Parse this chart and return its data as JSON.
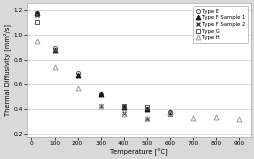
{
  "title": "",
  "xlabel": "Temperature [°C]",
  "ylabel": "Thermal Diffusivity [mm²/s]",
  "xlim": [
    -20,
    950
  ],
  "ylim": [
    0.18,
    1.25
  ],
  "xticks": [
    0,
    100,
    200,
    300,
    400,
    500,
    600,
    700,
    800,
    900
  ],
  "yticks": [
    0.2,
    0.4,
    0.6,
    0.8,
    1.0,
    1.2
  ],
  "series": {
    "Type E": {
      "x": [
        25,
        100,
        200,
        300,
        400,
        500,
        600
      ],
      "y": [
        1.17,
        0.89,
        0.69,
        0.52,
        0.42,
        0.4,
        0.38
      ]
    },
    "Type F Sample 1": {
      "x": [
        25,
        100,
        200,
        300,
        400,
        500,
        600
      ],
      "y": [
        1.17,
        0.88,
        0.68,
        0.52,
        0.42,
        0.4,
        0.38
      ]
    },
    "Type F Sample 2": {
      "x": [
        25,
        100,
        300,
        400,
        500
      ],
      "y": [
        1.16,
        0.88,
        0.43,
        0.37,
        0.32
      ]
    },
    "Type G": {
      "x": [
        25,
        400,
        500,
        600
      ],
      "y": [
        1.1,
        0.43,
        0.42,
        0.36
      ]
    },
    "Type H": {
      "x": [
        25,
        100,
        200,
        300,
        400,
        500,
        600,
        700,
        800,
        900
      ],
      "y": [
        0.95,
        0.74,
        0.57,
        0.43,
        0.36,
        0.33,
        0.37,
        0.33,
        0.34,
        0.32
      ]
    }
  },
  "marker_styles": {
    "Type E": {
      "marker": "o",
      "color": "#555555",
      "ms": 3.0,
      "mfc": "none",
      "mew": 0.7
    },
    "Type F Sample 1": {
      "marker": "^",
      "color": "#111111",
      "ms": 3.5,
      "mfc": "#111111",
      "mew": 0.7
    },
    "Type F Sample 2": {
      "marker": "x",
      "color": "#444444",
      "ms": 3.5,
      "mfc": "#444444",
      "mew": 1.0
    },
    "Type G": {
      "marker": "s",
      "color": "#555555",
      "ms": 3.0,
      "mfc": "none",
      "mew": 0.7
    },
    "Type H": {
      "marker": "^",
      "color": "#999999",
      "ms": 3.5,
      "mfc": "none",
      "mew": 0.7
    }
  },
  "legend_labels": [
    "Type E",
    "Type F Sample 1",
    "Type F Sample 2",
    "Type G",
    "Type H"
  ],
  "bg_color": "#d9d9d9",
  "plot_bg": "#ffffff",
  "grid_color": "#cccccc",
  "spine_color": "#aaaaaa",
  "tick_label_size": 4.2,
  "axis_label_size": 4.8,
  "legend_font_size": 3.8
}
